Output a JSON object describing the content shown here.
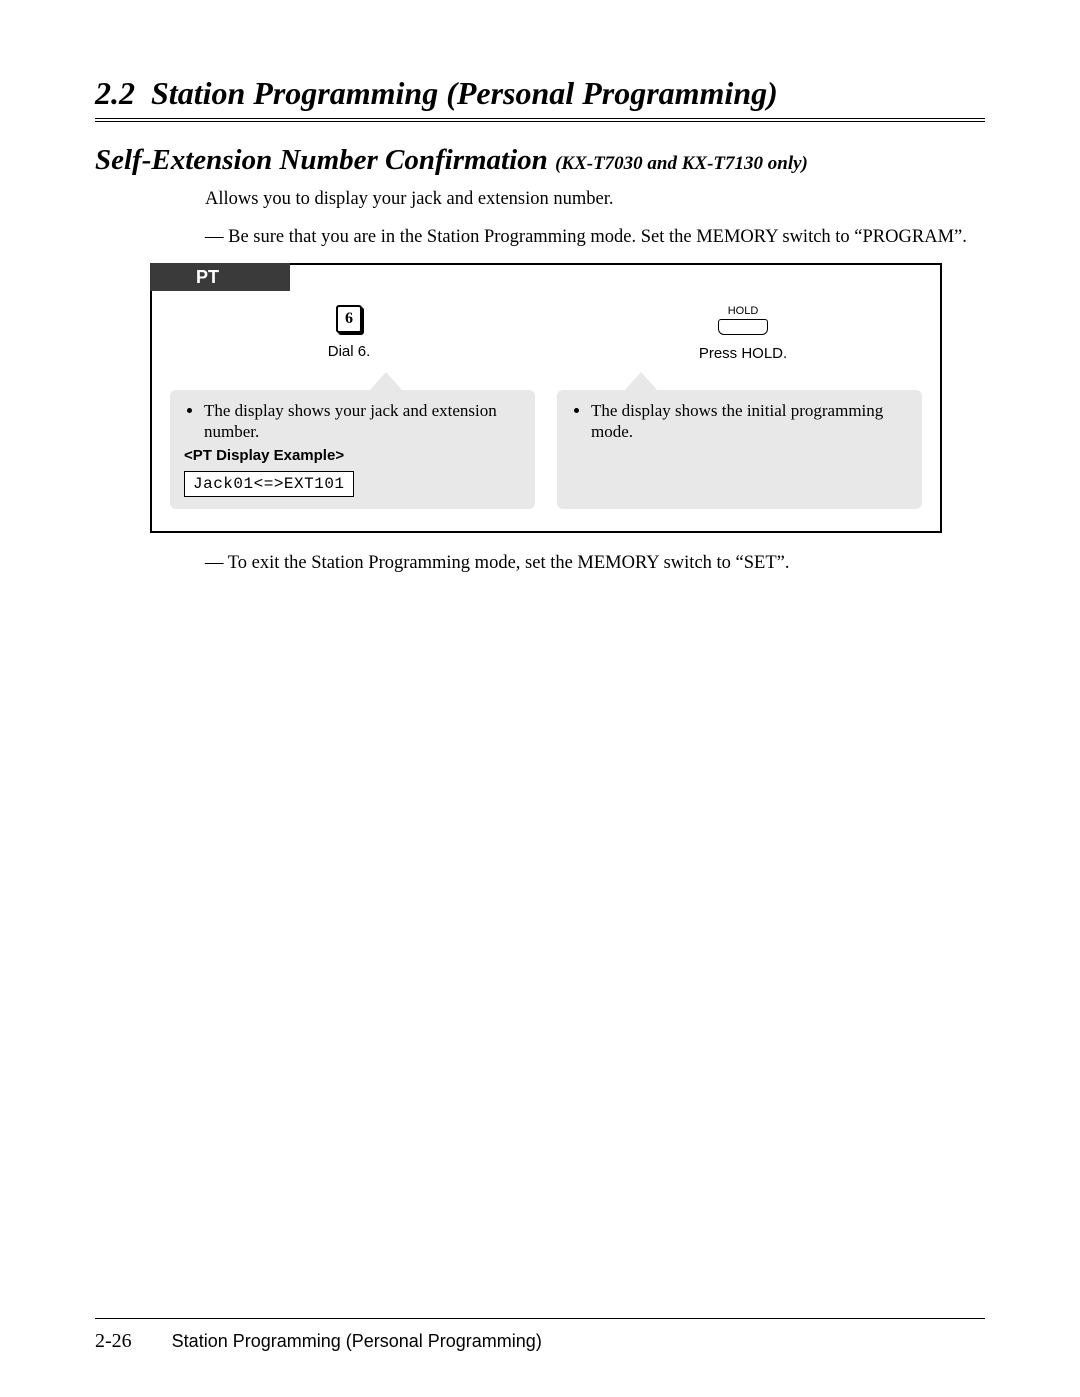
{
  "section": {
    "number": "2.2",
    "title": "Station Programming (Personal Programming)"
  },
  "topic": {
    "title": "Self-Extension Number Confirmation",
    "models": "(KX-T7030 and KX-T7130 only)"
  },
  "intro": "Allows you to display your jack and extension number.",
  "precondition": "— Be sure that you are in the Station Programming mode. Set the MEMORY switch to “PROGRAM”.",
  "box": {
    "tab": "PT",
    "step1": {
      "key": "6",
      "caption": "Dial 6.",
      "note": "The display shows your jack and extension number.",
      "display_title": "<PT Display Example>",
      "display_value": "Jack01<=>EXT101"
    },
    "step2": {
      "hold_label": "HOLD",
      "caption": "Press HOLD.",
      "note": "The display shows the initial programming mode."
    }
  },
  "post_note": "— To exit the Station Programming mode, set the MEMORY switch to “SET”.",
  "footer": {
    "page": "2-26",
    "text": "Station Programming (Personal Programming)"
  },
  "colors": {
    "tab_bg": "#3a3a3a",
    "callout_bg": "#e8e8e8",
    "text": "#000000",
    "page_bg": "#ffffff"
  }
}
